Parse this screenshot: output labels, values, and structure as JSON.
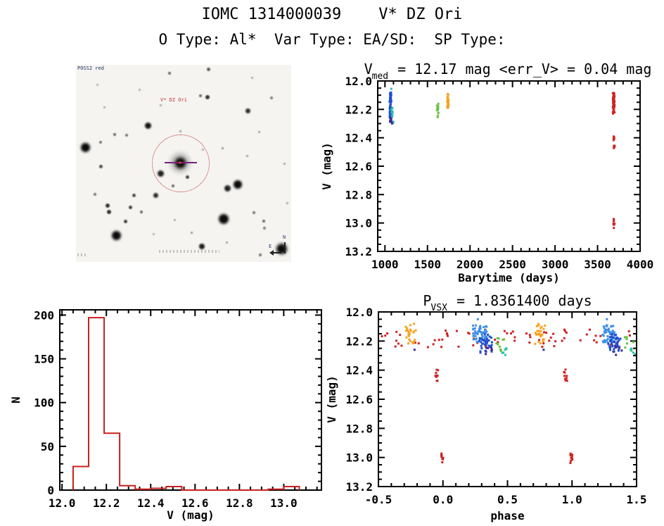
{
  "page": {
    "title": "IOMC 1314000039    V* DZ Ori",
    "subtitle": "O Type: Al*  Var Type: EA/SD:  SP Type:"
  },
  "field": {
    "survey_label": "POSS2 red",
    "target_label": "V* DZ Ori",
    "compass": {
      "north": "N",
      "east": "E"
    },
    "stars": [
      [
        148,
        139,
        26,
        0.3
      ],
      [
        148,
        139,
        15,
        1.0
      ],
      [
        13,
        117,
        13,
        1.0
      ],
      [
        57,
        242,
        13,
        1.0
      ],
      [
        210,
        219,
        14,
        1.0
      ],
      [
        292,
        261,
        15,
        1.0
      ],
      [
        230,
        170,
        12,
        1.0
      ],
      [
        215,
        175,
        9,
        0.9
      ],
      [
        102,
        86,
        9,
        0.95
      ],
      [
        120,
        154,
        9,
        0.9
      ],
      [
        113,
        185,
        7,
        0.85
      ],
      [
        179,
        258,
        8,
        0.9
      ],
      [
        244,
        65,
        7,
        0.85
      ],
      [
        187,
        46,
        6,
        0.8
      ],
      [
        158,
        159,
        5,
        0.75
      ],
      [
        35,
        144,
        5,
        0.7
      ],
      [
        77,
        202,
        5,
        0.75
      ],
      [
        82,
        185,
        5,
        0.7
      ],
      [
        45,
        200,
        6,
        0.8
      ],
      [
        47,
        209,
        6,
        0.8
      ],
      [
        70,
        222,
        5,
        0.75
      ],
      [
        93,
        209,
        4,
        0.6
      ],
      [
        133,
        12,
        4,
        0.6
      ],
      [
        188,
        6,
        5,
        0.65
      ],
      [
        177,
        44,
        4,
        0.6
      ],
      [
        35,
        110,
        4,
        0.55
      ],
      [
        55,
        99,
        4,
        0.6
      ],
      [
        72,
        100,
        4,
        0.55
      ],
      [
        27,
        184,
        4,
        0.55
      ],
      [
        138,
        172,
        4,
        0.6
      ],
      [
        267,
        222,
        4,
        0.6
      ],
      [
        253,
        210,
        4,
        0.55
      ],
      [
        268,
        232,
        4,
        0.5
      ],
      [
        262,
        270,
        4,
        0.55
      ],
      [
        278,
        47,
        4,
        0.5
      ],
      [
        148,
        94,
        3,
        0.4
      ],
      [
        208,
        118,
        3,
        0.45
      ],
      [
        243,
        129,
        3,
        0.4
      ],
      [
        164,
        238,
        3,
        0.45
      ],
      [
        214,
        252,
        3,
        0.4
      ],
      [
        120,
        57,
        3,
        0.35
      ],
      [
        260,
        95,
        3,
        0.4
      ],
      [
        40,
        60,
        3,
        0.35
      ],
      [
        296,
        140,
        3,
        0.4
      ],
      [
        180,
        120,
        3,
        0.35
      ],
      [
        90,
        35,
        3,
        0.35
      ],
      [
        250,
        18,
        3,
        0.35
      ],
      [
        300,
        196,
        3,
        0.35
      ],
      [
        30,
        28,
        3,
        0.3
      ],
      [
        140,
        220,
        3,
        0.35
      ],
      [
        110,
        240,
        3,
        0.3
      ],
      [
        246,
        290,
        3,
        0.4
      ]
    ]
  },
  "chart_data": [
    {
      "id": "lightcurve",
      "type": "scatter",
      "title": {
        "pre": "V",
        "sub": "med",
        "post": " = 12.17 mag <err_V> = 0.04 mag"
      },
      "xlabel": "Barytime (days)",
      "ylabel": "V (mag)",
      "xlim": [
        915,
        4000
      ],
      "ylim": [
        13.2,
        12.0
      ],
      "xticks": [
        "1000",
        "1500",
        "2000",
        "2500",
        "3000",
        "3500",
        "4000"
      ],
      "yticks": [
        "12.0",
        "12.2",
        "12.4",
        "12.6",
        "12.8",
        "13.0",
        "13.2"
      ],
      "xminor": 100,
      "yminor": 0.05,
      "grid": false,
      "legend": "none",
      "clusters": [
        {
          "color": "#1d4ed8",
          "x": 1065,
          "dx": 10,
          "y0": 12.08,
          "y1": 12.27,
          "n": 60
        },
        {
          "color": "#2bbfae",
          "x": 1090,
          "dx": 14,
          "y0": 12.18,
          "y1": 12.3,
          "n": 12
        },
        {
          "color": "#3b2a9d",
          "x": 1070,
          "dx": 16,
          "y0": 12.26,
          "y1": 12.31,
          "n": 7
        },
        {
          "color": "#67c23f",
          "x": 1620,
          "dx": 8,
          "y0": 12.15,
          "y1": 12.26,
          "n": 14
        },
        {
          "color": "#f6a21f",
          "x": 1740,
          "dx": 9,
          "y0": 12.09,
          "y1": 12.19,
          "n": 30
        },
        {
          "color": "#cf2222",
          "x": 3690,
          "dx": 10,
          "y0": 12.08,
          "y1": 12.23,
          "n": 55
        },
        {
          "color": "#cf2222",
          "x": 3693,
          "dx": 6,
          "y0": 12.39,
          "y1": 12.43,
          "n": 6
        },
        {
          "color": "#cf2222",
          "x": 3695,
          "dx": 6,
          "y0": 12.45,
          "y1": 12.48,
          "n": 6
        },
        {
          "color": "#cf2222",
          "x": 3693,
          "dx": 7,
          "y0": 12.97,
          "y1": 13.05,
          "n": 9
        }
      ],
      "points": [
        {
          "color": "#2bbfae",
          "x": 1075,
          "y": 12.055
        }
      ]
    },
    {
      "id": "histogram",
      "type": "bar",
      "title": "",
      "xlabel": "V (mag)",
      "ylabel": "N",
      "xlim": [
        11.99,
        13.17
      ],
      "ylim": [
        0,
        206
      ],
      "xticks": [
        "12.0",
        "12.2",
        "12.4",
        "12.6",
        "12.8",
        "13.0"
      ],
      "yticks": [
        "0",
        "50",
        "100",
        "150",
        "200"
      ],
      "xminor": 0.05,
      "yminor": 10,
      "grid": false,
      "legend": "none",
      "color": "#c62020",
      "bars": [
        {
          "x0": 12.05,
          "x1": 12.12,
          "n": 27
        },
        {
          "x0": 12.12,
          "x1": 12.19,
          "n": 197
        },
        {
          "x0": 12.19,
          "x1": 12.26,
          "n": 65
        },
        {
          "x0": 12.26,
          "x1": 12.33,
          "n": 5
        },
        {
          "x0": 12.33,
          "x1": 12.4,
          "n": 1
        },
        {
          "x0": 12.4,
          "x1": 12.47,
          "n": 2
        },
        {
          "x0": 12.47,
          "x1": 12.54,
          "n": 4
        },
        {
          "x0": 12.54,
          "x1": 12.93,
          "n": 0
        },
        {
          "x0": 12.93,
          "x1": 13.0,
          "n": 1
        },
        {
          "x0": 13.0,
          "x1": 13.07,
          "n": 4
        }
      ]
    },
    {
      "id": "phase",
      "type": "scatter",
      "title": {
        "pre": "P",
        "sub": "VSX",
        "post": " = 1.8361400 days"
      },
      "xlabel": "phase",
      "ylabel": "V (mag)",
      "xlim": [
        -0.5,
        1.5
      ],
      "ylim": [
        13.2,
        12.0
      ],
      "xticks": [
        "-0.5",
        "0.0",
        "0.5",
        "1.0",
        "1.5"
      ],
      "yticks": [
        "12.0",
        "12.2",
        "12.4",
        "12.6",
        "12.8",
        "13.0",
        "13.2"
      ],
      "xminor": 0.1,
      "yminor": 0.05,
      "grid": false,
      "legend": "none",
      "clusters": [
        {
          "color": "#cf2222",
          "x": 0.5,
          "dx": 1.0,
          "y0": 12.12,
          "y1": 12.25,
          "n": 72
        },
        {
          "color": "#f6a21f",
          "x": -0.25,
          "dx": 0.04,
          "y0": 12.08,
          "y1": 12.22,
          "n": 26
        },
        {
          "color": "#f6a21f",
          "x": 0.75,
          "dx": 0.04,
          "y0": 12.08,
          "y1": 12.22,
          "n": 26
        },
        {
          "color": "#3f8fe8",
          "x": 0.285,
          "dx": 0.055,
          "y0": 12.09,
          "y1": 12.21,
          "n": 48
        },
        {
          "color": "#3f8fe8",
          "x": 1.285,
          "dx": 0.055,
          "y0": 12.09,
          "y1": 12.21,
          "n": 48
        },
        {
          "color": "#2050cc",
          "x": 0.33,
          "dx": 0.05,
          "y0": 12.15,
          "y1": 12.28,
          "n": 36
        },
        {
          "color": "#2050cc",
          "x": 1.33,
          "dx": 0.05,
          "y0": 12.15,
          "y1": 12.28,
          "n": 36
        },
        {
          "color": "#3b2a9d",
          "x": 0.35,
          "dx": 0.035,
          "y0": 12.23,
          "y1": 12.31,
          "n": 7
        },
        {
          "color": "#3b2a9d",
          "x": 1.35,
          "dx": 0.035,
          "y0": 12.23,
          "y1": 12.31,
          "n": 7
        },
        {
          "color": "#67c23f",
          "x": 0.45,
          "dx": 0.045,
          "y0": 12.17,
          "y1": 12.27,
          "n": 10
        },
        {
          "color": "#67c23f",
          "x": 1.45,
          "dx": 0.045,
          "y0": 12.17,
          "y1": 12.27,
          "n": 10
        },
        {
          "color": "#2bbfae",
          "x": 0.475,
          "dx": 0.025,
          "y0": 12.25,
          "y1": 12.31,
          "n": 6
        },
        {
          "color": "#2bbfae",
          "x": 1.475,
          "dx": 0.025,
          "y0": 12.25,
          "y1": 12.31,
          "n": 6
        },
        {
          "color": "#cf2222",
          "x": -0.05,
          "dx": 0.012,
          "y0": 12.38,
          "y1": 12.49,
          "n": 9
        },
        {
          "color": "#cf2222",
          "x": -0.005,
          "dx": 0.008,
          "y0": 12.97,
          "y1": 13.05,
          "n": 9
        },
        {
          "color": "#cf2222",
          "x": 0.95,
          "dx": 0.012,
          "y0": 12.38,
          "y1": 12.49,
          "n": 9
        },
        {
          "color": "#cf2222",
          "x": 0.995,
          "dx": 0.008,
          "y0": 12.97,
          "y1": 13.05,
          "n": 9
        }
      ],
      "points": [
        {
          "color": "#3f8fe8",
          "x": 0.27,
          "y": 12.05
        },
        {
          "color": "#3f8fe8",
          "x": 1.27,
          "y": 12.05
        },
        {
          "color": "#3b2a9d",
          "x": -0.22,
          "y": 12.26
        },
        {
          "color": "#3b2a9d",
          "x": 0.78,
          "y": 12.26
        }
      ]
    }
  ]
}
